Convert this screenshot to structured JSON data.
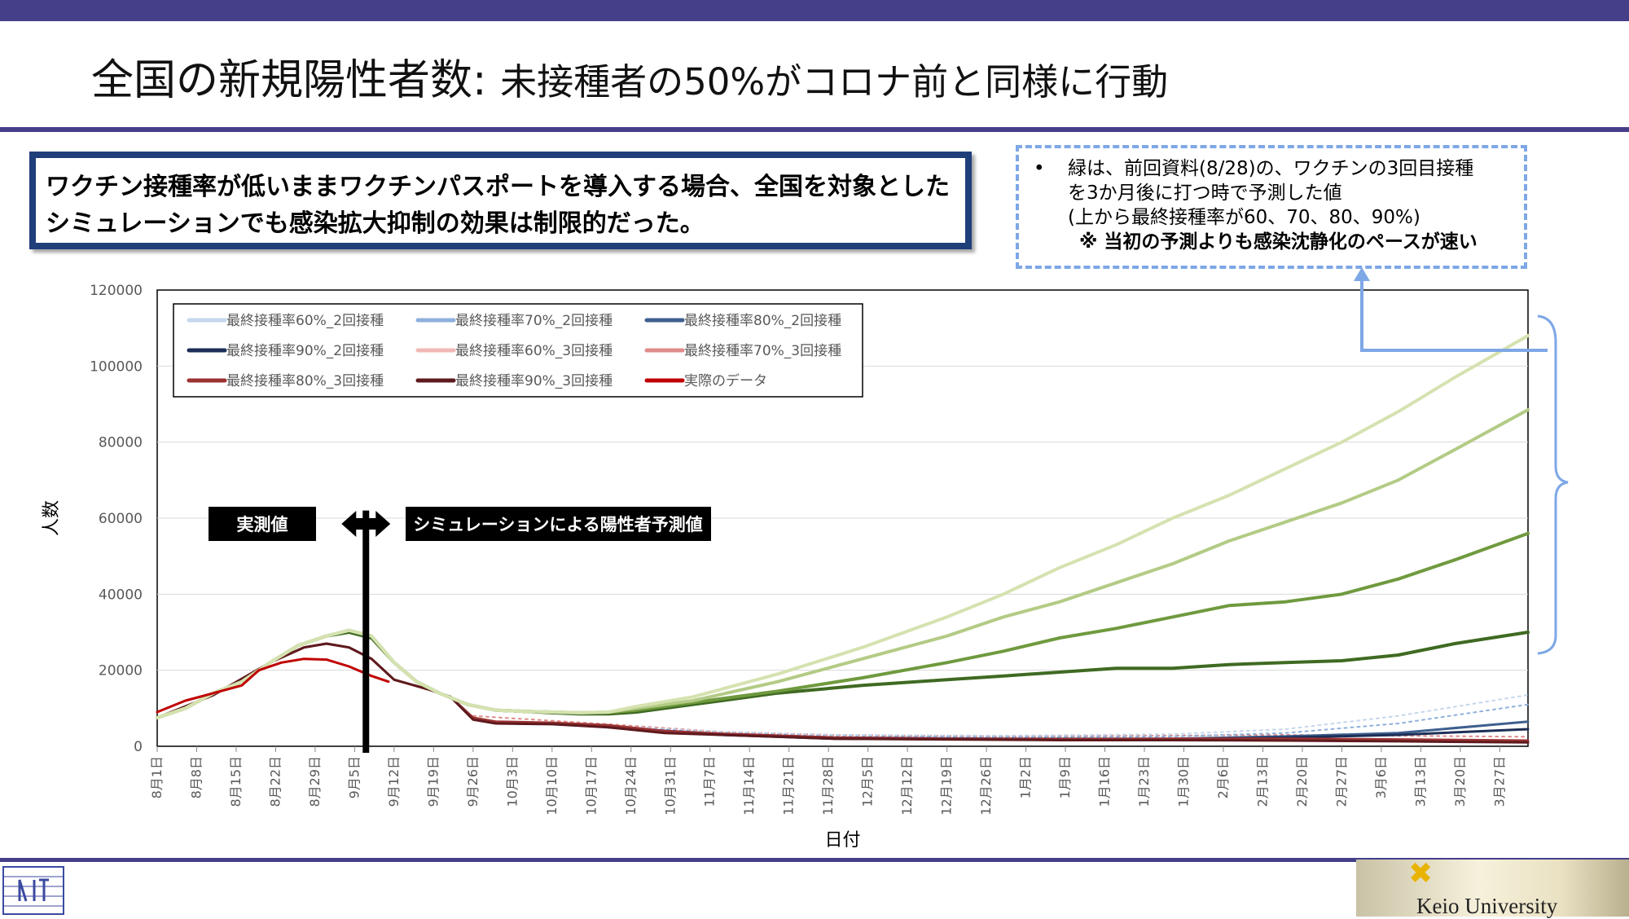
{
  "header": {
    "title_main": "全国の新規陽性者数: ",
    "title_sub": "未接種者の50%がコロナ前と同様に行動"
  },
  "callout": {
    "text": "ワクチン接種率が低いままワクチンパスポートを導入する場合、全国を対象としたシミュレーションでも感染拡大抑制の効果は制限的だった。"
  },
  "note": {
    "bullet": "•",
    "line1": "緑は、前回資料(8/28)の、ワクチンの3回目接種",
    "line2": "を3か月後に打つ時で予測した値",
    "line3": "(上から最終接種率が60、70、80、90%)",
    "line4": "※ 当初の予測よりも感染沈静化のペースが速い"
  },
  "footer": {
    "university": "Keio University"
  },
  "colors": {
    "brand_bar": "#453f8a",
    "callout_border": "#1f3f7a",
    "note_border": "#7ea7e6",
    "actual": "#c00000",
    "green": [
      "#d5e2b0",
      "#b3cb85",
      "#6f9a3e",
      "#3f6a22"
    ]
  },
  "chart_data": {
    "type": "line",
    "xlabel": "日付",
    "ylabel": "人数",
    "ylim": [
      0,
      120000
    ],
    "yticks": [
      "0",
      "20000",
      "40000",
      "60000",
      "80000",
      "100000",
      "120000"
    ],
    "xticks": [
      "8月1日",
      "8月8日",
      "8月15日",
      "8月22日",
      "8月29日",
      "9月5日",
      "9月12日",
      "9月19日",
      "9月26日",
      "10月3日",
      "10月10日",
      "10月17日",
      "10月24日",
      "10月31日",
      "11月7日",
      "11月14日",
      "11月21日",
      "11月28日",
      "12月5日",
      "12月12日",
      "12月19日",
      "12月26日",
      "1月2日",
      "1月9日",
      "1月16日",
      "1月23日",
      "1月30日",
      "2月6日",
      "2月13日",
      "2月20日",
      "2月27日",
      "3月6日",
      "3月13日",
      "3月20日",
      "3月27日"
    ],
    "x_day_range": [
      0,
      243
    ],
    "grid": "horizontal",
    "legend_position": "top-left",
    "legend": [
      {
        "name": "最終接種率60%_2回接種",
        "color": "#c5d7ec"
      },
      {
        "name": "最終接種率70%_2回接種",
        "color": "#8fb0dc"
      },
      {
        "name": "最終接種率80%_2回接種",
        "color": "#3e5f8e"
      },
      {
        "name": "最終接種率90%_2回接種",
        "color": "#1c2f57"
      },
      {
        "name": "最終接種率60%_3回接種",
        "color": "#f0b8b4"
      },
      {
        "name": "最終接種率70%_3回接種",
        "color": "#df8c8a"
      },
      {
        "name": "最終接種率80%_3回接種",
        "color": "#9b3232"
      },
      {
        "name": "最終接種率90%_3回接種",
        "color": "#5e1a1e"
      },
      {
        "name": "実際のデータ",
        "color": "#c00000"
      }
    ],
    "annotations": {
      "measured": "実測値",
      "simulated": "シミュレーションによる陽性者予測値"
    },
    "series": [
      {
        "name": "実際のデータ",
        "color": "#c00000",
        "width": 3,
        "points": [
          [
            0,
            9000
          ],
          [
            5,
            12000
          ],
          [
            10,
            14000
          ],
          [
            15,
            16000
          ],
          [
            18,
            20000
          ],
          [
            22,
            22000
          ],
          [
            26,
            23000
          ],
          [
            30,
            22800
          ],
          [
            34,
            21000
          ],
          [
            38,
            18500
          ],
          [
            41,
            17000
          ]
        ]
      },
      {
        "color": "#d5e2b0",
        "width": 4,
        "points": [
          [
            0,
            7500
          ],
          [
            5,
            10000
          ],
          [
            10,
            14000
          ],
          [
            15,
            17000
          ],
          [
            20,
            22000
          ],
          [
            25,
            26500
          ],
          [
            30,
            29000
          ],
          [
            34,
            30500
          ],
          [
            38,
            29000
          ],
          [
            42,
            22000
          ],
          [
            46,
            17000
          ],
          [
            50,
            14000
          ],
          [
            55,
            11000
          ],
          [
            60,
            9500
          ],
          [
            65,
            9200
          ],
          [
            70,
            9000
          ],
          [
            75,
            8800
          ],
          [
            80,
            9000
          ],
          [
            85,
            10500
          ],
          [
            95,
            13000
          ],
          [
            110,
            19000
          ],
          [
            125,
            26000
          ],
          [
            140,
            34000
          ],
          [
            150,
            40000
          ],
          [
            160,
            47000
          ],
          [
            170,
            53000
          ],
          [
            180,
            60000
          ],
          [
            190,
            66000
          ],
          [
            200,
            73000
          ],
          [
            210,
            80000
          ],
          [
            220,
            88000
          ],
          [
            230,
            97000
          ],
          [
            243,
            108000
          ]
        ]
      },
      {
        "color": "#b3cb85",
        "width": 4,
        "points": [
          [
            0,
            7500
          ],
          [
            5,
            10000
          ],
          [
            10,
            14000
          ],
          [
            15,
            17000
          ],
          [
            20,
            22000
          ],
          [
            25,
            26500
          ],
          [
            30,
            29000
          ],
          [
            34,
            30500
          ],
          [
            38,
            29000
          ],
          [
            42,
            22000
          ],
          [
            46,
            17000
          ],
          [
            50,
            14000
          ],
          [
            55,
            11000
          ],
          [
            60,
            9500
          ],
          [
            65,
            9200
          ],
          [
            70,
            9000
          ],
          [
            75,
            8800
          ],
          [
            80,
            9000
          ],
          [
            85,
            10000
          ],
          [
            95,
            12000
          ],
          [
            110,
            17000
          ],
          [
            125,
            23000
          ],
          [
            140,
            29000
          ],
          [
            150,
            34000
          ],
          [
            160,
            38000
          ],
          [
            170,
            43000
          ],
          [
            180,
            48000
          ],
          [
            190,
            54000
          ],
          [
            200,
            59000
          ],
          [
            210,
            64000
          ],
          [
            220,
            70000
          ],
          [
            230,
            78000
          ],
          [
            243,
            88500
          ]
        ]
      },
      {
        "color": "#6f9a3e",
        "width": 4,
        "points": [
          [
            0,
            7500
          ],
          [
            5,
            10000
          ],
          [
            10,
            14000
          ],
          [
            15,
            17000
          ],
          [
            20,
            22000
          ],
          [
            25,
            26500
          ],
          [
            30,
            29000
          ],
          [
            34,
            30500
          ],
          [
            38,
            29000
          ],
          [
            42,
            22000
          ],
          [
            46,
            17000
          ],
          [
            50,
            14000
          ],
          [
            55,
            11000
          ],
          [
            60,
            9500
          ],
          [
            65,
            9200
          ],
          [
            70,
            9000
          ],
          [
            75,
            8800
          ],
          [
            80,
            8900
          ],
          [
            85,
            9500
          ],
          [
            95,
            11500
          ],
          [
            110,
            14500
          ],
          [
            125,
            18000
          ],
          [
            140,
            22000
          ],
          [
            150,
            25000
          ],
          [
            160,
            28500
          ],
          [
            170,
            31000
          ],
          [
            180,
            34000
          ],
          [
            190,
            37000
          ],
          [
            200,
            38000
          ],
          [
            210,
            40000
          ],
          [
            220,
            44000
          ],
          [
            230,
            49000
          ],
          [
            243,
            56000
          ]
        ]
      },
      {
        "color": "#3f6a22",
        "width": 4,
        "points": [
          [
            0,
            7500
          ],
          [
            5,
            10000
          ],
          [
            10,
            14000
          ],
          [
            15,
            17000
          ],
          [
            20,
            22000
          ],
          [
            25,
            26500
          ],
          [
            30,
            29000
          ],
          [
            34,
            30000
          ],
          [
            38,
            28500
          ],
          [
            42,
            22000
          ],
          [
            46,
            17000
          ],
          [
            50,
            14000
          ],
          [
            55,
            11000
          ],
          [
            60,
            9500
          ],
          [
            65,
            9200
          ],
          [
            70,
            8800
          ],
          [
            75,
            8500
          ],
          [
            80,
            8500
          ],
          [
            85,
            9000
          ],
          [
            95,
            11000
          ],
          [
            110,
            14000
          ],
          [
            125,
            16000
          ],
          [
            140,
            17500
          ],
          [
            150,
            18500
          ],
          [
            160,
            19500
          ],
          [
            170,
            20500
          ],
          [
            180,
            20500
          ],
          [
            190,
            21500
          ],
          [
            200,
            22000
          ],
          [
            210,
            22500
          ],
          [
            220,
            24000
          ],
          [
            230,
            27000
          ],
          [
            243,
            30000
          ]
        ]
      },
      {
        "color": "#5e1a1e",
        "width": 3,
        "points": [
          [
            0,
            7500
          ],
          [
            10,
            13500
          ],
          [
            20,
            22000
          ],
          [
            26,
            26000
          ],
          [
            30,
            27000
          ],
          [
            34,
            26000
          ],
          [
            38,
            23000
          ],
          [
            42,
            17500
          ],
          [
            48,
            15000
          ],
          [
            52,
            13000
          ],
          [
            56,
            7000
          ],
          [
            60,
            6000
          ],
          [
            70,
            5800
          ],
          [
            80,
            5000
          ],
          [
            90,
            3500
          ],
          [
            100,
            3000
          ],
          [
            110,
            2500
          ],
          [
            120,
            2000
          ],
          [
            140,
            1800
          ],
          [
            160,
            1600
          ],
          [
            180,
            1600
          ],
          [
            200,
            1500
          ],
          [
            220,
            1300
          ],
          [
            243,
            1000
          ]
        ]
      },
      {
        "color": "#9b3232",
        "width": 3,
        "points": [
          [
            0,
            7500
          ],
          [
            10,
            13500
          ],
          [
            20,
            22000
          ],
          [
            26,
            26000
          ],
          [
            30,
            27000
          ],
          [
            34,
            26000
          ],
          [
            38,
            23000
          ],
          [
            42,
            17500
          ],
          [
            48,
            15000
          ],
          [
            52,
            13000
          ],
          [
            56,
            7500
          ],
          [
            60,
            6500
          ],
          [
            70,
            6200
          ],
          [
            80,
            5500
          ],
          [
            90,
            4000
          ],
          [
            100,
            3300
          ],
          [
            110,
            2800
          ],
          [
            120,
            2300
          ],
          [
            140,
            2000
          ],
          [
            160,
            1900
          ],
          [
            180,
            2000
          ],
          [
            200,
            2000
          ],
          [
            220,
            1800
          ],
          [
            243,
            1500
          ]
        ]
      },
      {
        "color": "#1c2f57",
        "width": 3,
        "points": [
          [
            80,
            5000
          ],
          [
            100,
            3000
          ],
          [
            120,
            2000
          ],
          [
            150,
            1800
          ],
          [
            180,
            1800
          ],
          [
            200,
            2300
          ],
          [
            220,
            3000
          ],
          [
            243,
            4500
          ]
        ]
      },
      {
        "color": "#3e5f8e",
        "width": 3,
        "points": [
          [
            80,
            5000
          ],
          [
            100,
            3200
          ],
          [
            120,
            2300
          ],
          [
            150,
            2000
          ],
          [
            180,
            2000
          ],
          [
            200,
            2600
          ],
          [
            220,
            3500
          ],
          [
            243,
            6500
          ]
        ]
      },
      {
        "color": "#8fb0dc",
        "width": 2,
        "dash": "3,5",
        "points": [
          [
            80,
            5200
          ],
          [
            100,
            3500
          ],
          [
            120,
            2600
          ],
          [
            150,
            2400
          ],
          [
            180,
            2600
          ],
          [
            200,
            3500
          ],
          [
            220,
            6000
          ],
          [
            243,
            11000
          ]
        ]
      },
      {
        "color": "#c5d7ec",
        "width": 2,
        "dash": "3,5",
        "points": [
          [
            80,
            5400
          ],
          [
            100,
            3800
          ],
          [
            120,
            3000
          ],
          [
            150,
            2800
          ],
          [
            180,
            3200
          ],
          [
            200,
            4500
          ],
          [
            220,
            8000
          ],
          [
            243,
            13500
          ]
        ]
      },
      {
        "color": "#df8c8a",
        "width": 2,
        "dash": "3,5",
        "points": [
          [
            56,
            8000
          ],
          [
            80,
            5800
          ],
          [
            100,
            3800
          ],
          [
            120,
            3000
          ],
          [
            150,
            2600
          ],
          [
            180,
            2800
          ],
          [
            200,
            3000
          ],
          [
            243,
            2500
          ]
        ]
      }
    ]
  }
}
